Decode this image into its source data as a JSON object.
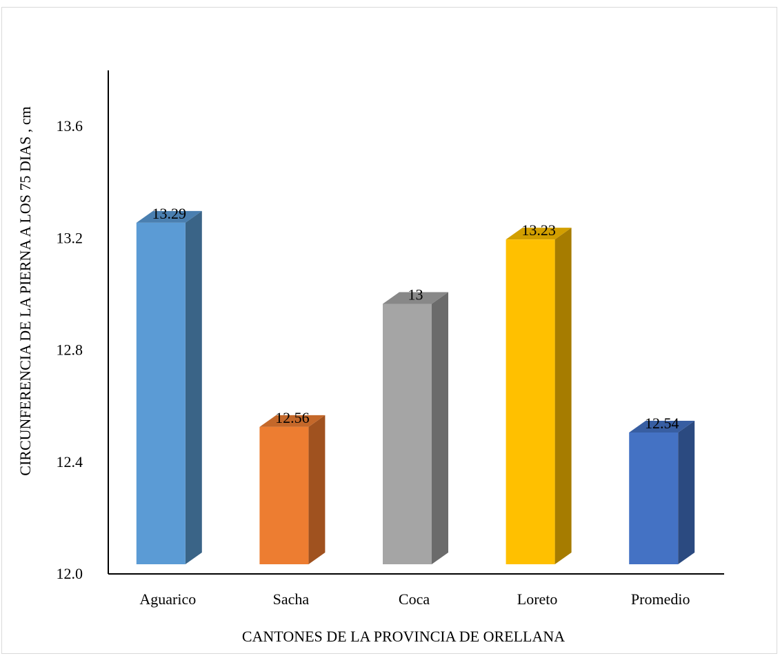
{
  "chart_data": {
    "type": "bar",
    "style": "3d-column",
    "categories": [
      "Aguarico",
      "Sacha",
      "Coca",
      "Loreto",
      "Promedio"
    ],
    "values": [
      13.29,
      12.56,
      13,
      13.23,
      12.54
    ],
    "data_labels": [
      "13.29",
      "12.56",
      "13",
      "13.23",
      "12.54"
    ],
    "colors": [
      {
        "front": "#5b9bd5",
        "side": "#3a6487",
        "top": "#4a7fb0"
      },
      {
        "front": "#ed7d31",
        "side": "#a0521f",
        "top": "#c4682a"
      },
      {
        "front": "#a5a5a5",
        "side": "#6b6b6b",
        "top": "#888888"
      },
      {
        "front": "#ffc000",
        "side": "#a67c00",
        "top": "#d29f00"
      },
      {
        "front": "#4472c4",
        "side": "#2b4a80",
        "top": "#385ea2"
      }
    ],
    "ylabel": "CIRCUNFERENCIA DE LA PIERNA A LOS 75 DIAS , cm",
    "xlabel": "CANTONES DE LA PROVINCIA DE ORELLANA",
    "ylim": [
      12.0,
      13.8
    ],
    "yticks": [
      12.0,
      12.4,
      12.8,
      13.2,
      13.6
    ],
    "ytick_labels": [
      "12.0",
      "12.4",
      "12.8",
      "13.2",
      "13.6"
    ],
    "grid": false,
    "legend": "none"
  }
}
